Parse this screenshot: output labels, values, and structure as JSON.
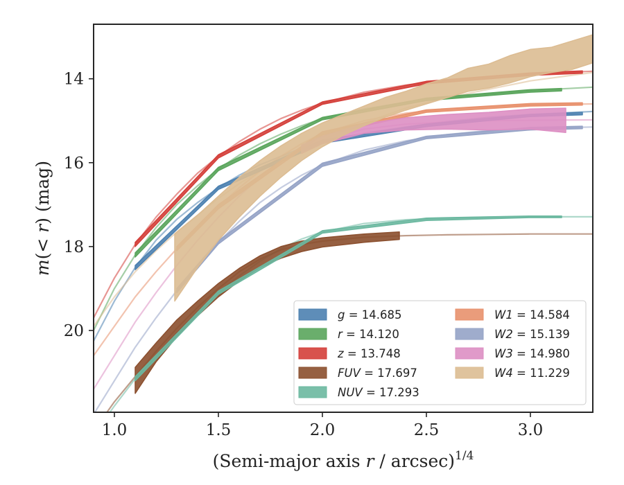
{
  "chart_data": {
    "type": "line",
    "xlabel": "(Semi-major axis r / arcsec)^1/4",
    "xlabel_parts": [
      "(Semi-major axis ",
      "r",
      " / arcsec)",
      "1/4"
    ],
    "ylabel": "m(< r) (mag)",
    "ylabel_parts": [
      "m",
      "(< ",
      "r",
      ")",
      " (mag)"
    ],
    "xlim": [
      0.9,
      3.3
    ],
    "ylim": [
      21.95,
      12.7
    ],
    "y_inverted": true,
    "xticks": [
      1.0,
      1.5,
      2.0,
      2.5,
      3.0
    ],
    "xtick_labels": [
      "1.0",
      "1.5",
      "2.0",
      "2.5",
      "3.0"
    ],
    "yticks": [
      14,
      16,
      18,
      20
    ],
    "ytick_labels": [
      "14",
      "16",
      "18",
      "20"
    ],
    "grid": false,
    "legend_position": "lower-right",
    "legend_columns": 2,
    "series": [
      {
        "name": "g",
        "label_value": "14.685",
        "color": "#4c81b0",
        "x": [
          0.9,
          1.0,
          1.1,
          1.2,
          1.3,
          1.4,
          1.5,
          1.6,
          1.7,
          1.8,
          1.9,
          2.0,
          2.2,
          2.4,
          2.6,
          2.8,
          3.0,
          3.3
        ],
        "y": [
          20.25,
          19.3,
          18.5,
          17.85,
          17.35,
          16.95,
          16.6,
          16.3,
          16.05,
          15.85,
          15.65,
          15.5,
          15.3,
          15.15,
          15.02,
          14.92,
          14.85,
          14.78
        ],
        "band_x": [
          1.1,
          1.5,
          2.0,
          2.5,
          3.0,
          3.25
        ],
        "band_lo": [
          18.45,
          16.56,
          15.46,
          15.08,
          14.85,
          14.8
        ],
        "band_hi": [
          18.55,
          16.64,
          15.54,
          15.14,
          14.9,
          14.86
        ]
      },
      {
        "name": "r",
        "label_value": "14.120",
        "color": "#5aa55c",
        "x": [
          0.9,
          1.0,
          1.1,
          1.2,
          1.3,
          1.4,
          1.5,
          1.6,
          1.7,
          1.8,
          1.9,
          2.0,
          2.2,
          2.4,
          2.6,
          2.8,
          3.0,
          3.3
        ],
        "y": [
          20.0,
          19.0,
          18.2,
          17.55,
          17.0,
          16.55,
          16.15,
          15.82,
          15.55,
          15.32,
          15.12,
          14.95,
          14.72,
          14.56,
          14.45,
          14.36,
          14.28,
          14.2
        ],
        "band_x": [
          1.1,
          1.5,
          2.0,
          2.5,
          3.0,
          3.15
        ],
        "band_lo": [
          18.15,
          16.11,
          14.92,
          14.46,
          14.26,
          14.23
        ],
        "band_hi": [
          18.25,
          16.19,
          14.98,
          14.52,
          14.32,
          14.29
        ]
      },
      {
        "name": "z",
        "label_value": "13.748",
        "color": "#d43f3a",
        "x": [
          0.9,
          1.0,
          1.1,
          1.2,
          1.3,
          1.4,
          1.5,
          1.6,
          1.7,
          1.8,
          1.9,
          2.0,
          2.2,
          2.4,
          2.6,
          2.8,
          3.0,
          3.3
        ],
        "y": [
          19.7,
          18.75,
          17.95,
          17.3,
          16.75,
          16.25,
          15.85,
          15.5,
          15.2,
          14.95,
          14.75,
          14.58,
          14.32,
          14.15,
          14.03,
          13.95,
          13.88,
          13.82
        ],
        "band_x": [
          1.1,
          1.5,
          2.0,
          2.5,
          3.0,
          3.25
        ],
        "band_lo": [
          17.9,
          15.81,
          14.55,
          14.06,
          13.86,
          13.81
        ],
        "band_hi": [
          18.0,
          15.89,
          14.61,
          14.12,
          13.92,
          13.87
        ]
      },
      {
        "name": "FUV",
        "label_value": "17.697",
        "color": "#8b4f2e",
        "x": [
          0.9,
          1.0,
          1.1,
          1.2,
          1.3,
          1.4,
          1.5,
          1.6,
          1.7,
          1.8,
          1.9,
          2.0,
          2.2,
          2.4,
          2.6,
          2.8,
          3.0,
          3.3
        ],
        "y": [
          22.4,
          21.7,
          21.1,
          20.5,
          19.95,
          19.45,
          19.0,
          18.6,
          18.3,
          18.08,
          17.95,
          17.87,
          17.78,
          17.74,
          17.72,
          17.71,
          17.7,
          17.7
        ],
        "band_x": [
          1.1,
          1.2,
          1.3,
          1.4,
          1.5,
          1.6,
          1.7,
          1.8,
          1.9,
          2.0,
          2.2,
          2.37
        ],
        "band_lo": [
          20.88,
          20.3,
          19.75,
          19.3,
          18.88,
          18.52,
          18.22,
          18.0,
          17.87,
          17.79,
          17.7,
          17.65
        ],
        "band_hi": [
          21.5,
          20.75,
          20.15,
          19.65,
          19.2,
          18.82,
          18.5,
          18.28,
          18.12,
          18.01,
          17.9,
          17.83
        ]
      },
      {
        "name": "NUV",
        "label_value": "17.293",
        "color": "#6bb8a0",
        "x": [
          0.9,
          1.0,
          1.1,
          1.2,
          1.3,
          1.4,
          1.5,
          1.6,
          1.7,
          1.8,
          1.9,
          2.0,
          2.2,
          2.4,
          2.6,
          2.8,
          3.0,
          3.3
        ],
        "y": [
          22.5,
          21.8,
          21.15,
          20.6,
          20.05,
          19.55,
          19.1,
          18.7,
          18.35,
          18.05,
          17.82,
          17.65,
          17.45,
          17.36,
          17.32,
          17.3,
          17.29,
          17.29
        ],
        "band_x": [
          1.1,
          1.5,
          2.0,
          2.5,
          3.0,
          3.15
        ],
        "band_lo": [
          21.1,
          19.06,
          17.62,
          17.32,
          17.27,
          17.27
        ],
        "band_hi": [
          21.2,
          19.14,
          17.68,
          17.38,
          17.31,
          17.31
        ]
      },
      {
        "name": "W1",
        "label_value": "14.584",
        "color": "#e8916d",
        "x": [
          0.9,
          1.0,
          1.1,
          1.2,
          1.3,
          1.4,
          1.5,
          1.6,
          1.7,
          1.8,
          1.9,
          2.0,
          2.2,
          2.4,
          2.6,
          2.8,
          3.0,
          3.3
        ],
        "y": [
          20.6,
          19.9,
          19.2,
          18.6,
          18.05,
          17.55,
          17.05,
          16.6,
          16.2,
          15.85,
          15.55,
          15.3,
          15.0,
          14.82,
          14.72,
          14.66,
          14.62,
          14.6
        ],
        "band_x": [
          1.3,
          1.5,
          2.0,
          2.5,
          3.0,
          3.25
        ],
        "band_lo": [
          18.0,
          17.0,
          15.26,
          14.74,
          14.59,
          14.57
        ],
        "band_hi": [
          18.1,
          17.1,
          15.34,
          14.8,
          14.65,
          14.63
        ]
      },
      {
        "name": "W2",
        "label_value": "15.139",
        "color": "#95a3c6",
        "x": [
          0.9,
          1.0,
          1.1,
          1.2,
          1.3,
          1.4,
          1.5,
          1.6,
          1.7,
          1.8,
          1.9,
          2.0,
          2.2,
          2.4,
          2.6,
          2.8,
          3.0,
          3.3
        ],
        "y": [
          22.0,
          21.2,
          20.4,
          19.7,
          19.05,
          18.45,
          17.9,
          17.4,
          16.95,
          16.6,
          16.3,
          16.05,
          15.7,
          15.48,
          15.33,
          15.23,
          15.18,
          15.15
        ],
        "band_x": [
          1.3,
          1.5,
          2.0,
          2.5,
          3.0,
          3.25
        ],
        "band_lo": [
          19.0,
          17.86,
          16.01,
          15.37,
          15.16,
          15.13
        ],
        "band_hi": [
          19.1,
          17.94,
          16.09,
          15.43,
          15.22,
          15.19
        ]
      },
      {
        "name": "W3",
        "label_value": "14.980",
        "color": "#dd8fc3",
        "x": [
          0.9,
          1.0,
          1.1,
          1.2,
          1.3,
          1.4,
          1.5,
          1.6,
          1.7,
          1.8,
          1.9,
          2.0,
          2.2,
          2.4,
          2.6,
          2.8,
          3.0,
          3.3
        ],
        "y": [
          21.4,
          20.6,
          19.8,
          19.1,
          18.45,
          17.85,
          17.3,
          16.8,
          16.35,
          15.98,
          15.68,
          15.45,
          15.2,
          15.08,
          15.03,
          15.0,
          14.99,
          14.98
        ],
        "band_x": [
          1.9,
          2.0,
          2.2,
          2.4,
          2.6,
          2.8,
          3.0,
          3.17
        ],
        "band_lo": [
          15.58,
          15.37,
          15.08,
          14.93,
          14.85,
          14.8,
          14.72,
          14.7
        ],
        "band_hi": [
          15.78,
          15.55,
          15.3,
          15.22,
          15.2,
          15.22,
          15.2,
          15.28
        ]
      },
      {
        "name": "W4",
        "label_value": "11.229",
        "color": "#dcbc92",
        "x": [
          0.9,
          1.0,
          1.1,
          1.2,
          1.3,
          1.4,
          1.5,
          1.6,
          1.7,
          1.8,
          1.9,
          2.0,
          2.2,
          2.4,
          2.6,
          2.8,
          3.0,
          3.3
        ],
        "y": [
          19.9,
          19.2,
          18.6,
          18.1,
          17.65,
          17.25,
          16.85,
          16.5,
          16.2,
          15.9,
          15.65,
          15.45,
          15.05,
          14.7,
          14.45,
          14.25,
          14.05,
          13.85
        ],
        "band_x": [
          1.29,
          1.4,
          1.5,
          1.6,
          1.7,
          1.8,
          1.9,
          2.0,
          2.1,
          2.2,
          2.3,
          2.4,
          2.5,
          2.6,
          2.7,
          2.8,
          2.9,
          3.0,
          3.1,
          3.2,
          3.3
        ],
        "band_lo": [
          17.7,
          17.25,
          16.8,
          16.35,
          15.95,
          15.6,
          15.3,
          15.05,
          14.85,
          14.65,
          14.45,
          14.3,
          14.12,
          13.98,
          13.75,
          13.65,
          13.45,
          13.3,
          13.25,
          13.1,
          12.95
        ],
        "band_hi": [
          19.3,
          18.5,
          17.85,
          17.3,
          16.8,
          16.35,
          15.95,
          15.62,
          15.35,
          15.12,
          14.92,
          14.75,
          14.6,
          14.45,
          14.3,
          14.22,
          14.1,
          13.95,
          13.85,
          13.78,
          13.62
        ]
      }
    ]
  }
}
